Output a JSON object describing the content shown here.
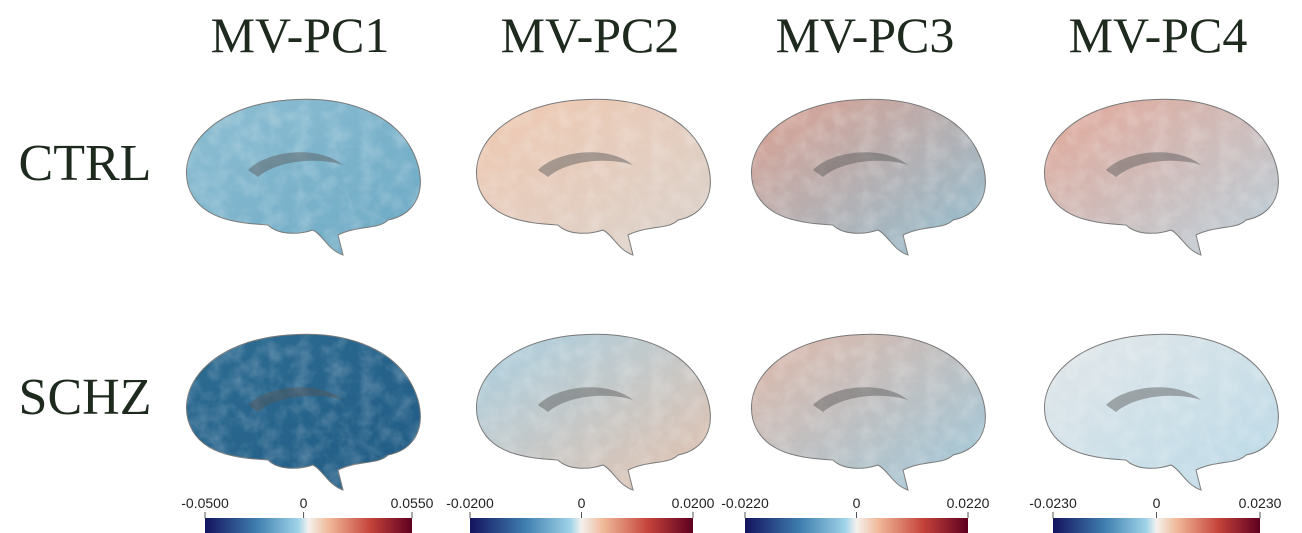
{
  "columns": [
    "MV-PC1",
    "MV-PC2",
    "MV-PC3",
    "MV-PC4"
  ],
  "rows": [
    "CTRL",
    "SCHZ"
  ],
  "colorbars": [
    {
      "lim": [
        -0.05,
        0.055
      ],
      "ticks": [
        {
          "value": -0.05,
          "label": "-0.0500"
        },
        0,
        {
          "value": 0.055,
          "label": "0.0550"
        }
      ]
    },
    {
      "lim": [
        -0.02,
        0.02
      ],
      "ticks": [
        {
          "value": -0.02,
          "label": "-0.0200"
        },
        0,
        {
          "value": 0.02,
          "label": "0.0200"
        }
      ]
    },
    {
      "lim": [
        -0.022,
        0.022
      ],
      "ticks": [
        {
          "value": -0.022,
          "label": "-0.0220"
        },
        0,
        {
          "value": 0.022,
          "label": "0.0220"
        }
      ]
    },
    {
      "lim": [
        -0.023,
        0.023
      ],
      "ticks": [
        {
          "value": -0.023,
          "label": "-0.0230"
        },
        0,
        {
          "value": 0.023,
          "label": "0.0230"
        }
      ]
    }
  ]
}
